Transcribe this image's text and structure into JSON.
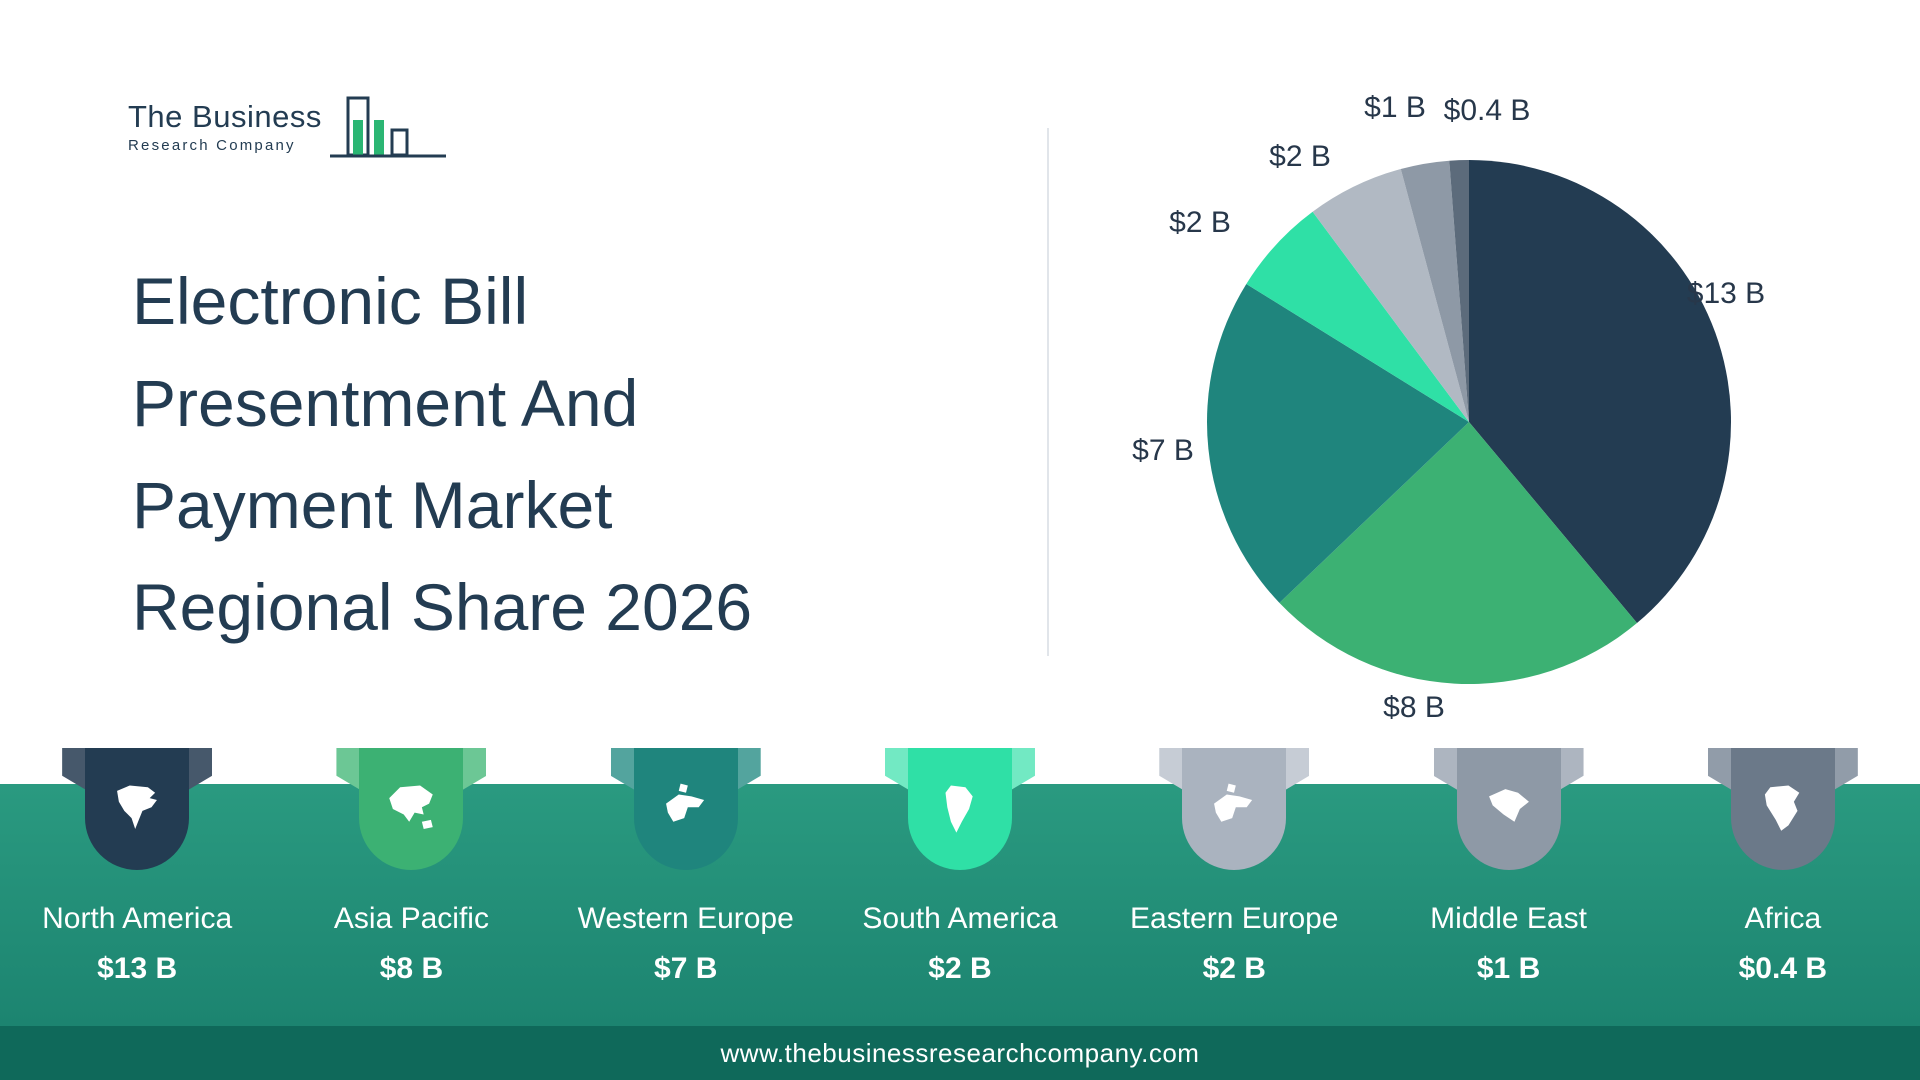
{
  "brand": {
    "name_line1": "The Business",
    "name_line2": "Research Company"
  },
  "title_lines": [
    "Electronic Bill",
    "Presentment And",
    "Payment Market",
    "Regional Share 2026"
  ],
  "chart_data": {
    "type": "pie",
    "title": "Electronic Bill Presentment And Payment Market Regional Share 2026",
    "unit": "USD billions",
    "categories": [
      "North America",
      "Asia Pacific",
      "Western Europe",
      "South America",
      "Eastern Europe",
      "Middle East",
      "Africa"
    ],
    "values": [
      13,
      8,
      7,
      2,
      2,
      1,
      0.4
    ],
    "labels": [
      "$13 B",
      "$8 B",
      "$7 B",
      "$2 B",
      "$2 B",
      "$1 B",
      "$0.4 B"
    ],
    "colors": [
      "#233c52",
      "#3cb173",
      "#1f857d",
      "#2fe0a6",
      "#b1b9c3",
      "#8e99a6",
      "#5c6b7b"
    ],
    "start_angle_deg": -90,
    "direction": "clockwise",
    "legend_position": "bottom"
  },
  "legend": {
    "items": [
      {
        "name": "North America",
        "value": "$13 B",
        "color": "#233c52",
        "tint": "#46586b",
        "icon": "north-america-icon"
      },
      {
        "name": "Asia Pacific",
        "value": "$8 B",
        "color": "#3cb173",
        "tint": "#6cc795",
        "icon": "asia-pacific-icon"
      },
      {
        "name": "Western Europe",
        "value": "$7 B",
        "color": "#1f857d",
        "tint": "#53a49e",
        "icon": "western-europe-icon"
      },
      {
        "name": "South America",
        "value": "$2 B",
        "color": "#2fe0a6",
        "tint": "#72e9c3",
        "icon": "south-america-icon"
      },
      {
        "name": "Eastern Europe",
        "value": "$2 B",
        "color": "#aab3bf",
        "tint": "#c6ccd5",
        "icon": "eastern-europe-icon"
      },
      {
        "name": "Middle East",
        "value": "$1 B",
        "color": "#8e99a6",
        "tint": "#adb5c0",
        "icon": "middle-east-icon"
      },
      {
        "name": "Africa",
        "value": "$0.4 B",
        "color": "#6b7989",
        "tint": "#919ca9",
        "icon": "africa-icon"
      }
    ]
  },
  "footer": {
    "url": "www.thebusinessresearchcompany.com"
  },
  "colors": {
    "accent_band": "#21937c",
    "footer_bar": "#0f695a",
    "title_text": "#233c52"
  }
}
